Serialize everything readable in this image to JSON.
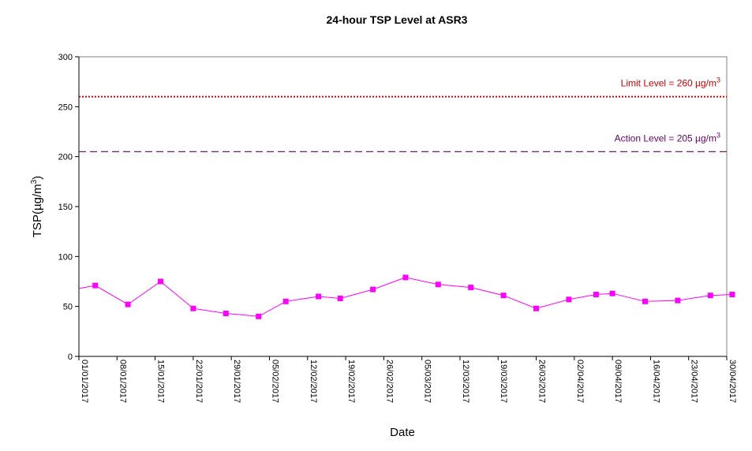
{
  "chart_data": {
    "type": "line",
    "title": "24-hour TSP Level at ASR3",
    "xlabel": "Date",
    "ylabel": "TSP(µg/m³)",
    "ylabel_base": "TSP(",
    "ylabel_unit": "µg/m",
    "ylabel_sup": "3",
    "ylabel_close": ")",
    "ylim": [
      0,
      300
    ],
    "yticks": [
      0,
      50,
      100,
      150,
      200,
      250,
      300
    ],
    "xlim": [
      "2017-01-01",
      "2017-04-30"
    ],
    "xticks": [
      "01/01/2017",
      "08/01/2017",
      "15/01/2017",
      "22/01/2017",
      "29/01/2017",
      "05/02/2017",
      "12/02/2017",
      "19/02/2017",
      "26/02/2017",
      "05/03/2017",
      "12/03/2017",
      "19/03/2017",
      "26/03/2017",
      "02/04/2017",
      "09/04/2017",
      "16/04/2017",
      "23/04/2017",
      "30/04/2017"
    ],
    "grid": false,
    "legend": "none",
    "reference_lines": [
      {
        "label": "Limit Level = 260 µg/m",
        "sup": "3",
        "value": 260,
        "color": "#cc0000",
        "style": "dotted"
      },
      {
        "label": "Action Level = 205 µg/m",
        "sup": "3",
        "value": 205,
        "color": "#660066",
        "style": "dashed"
      }
    ],
    "series": [
      {
        "color": "#ff00ff",
        "marker": "square",
        "start": {
          "x": "2017-01-01",
          "y": 68
        },
        "points": [
          {
            "x": "2017-01-04",
            "y": 71
          },
          {
            "x": "2017-01-10",
            "y": 52
          },
          {
            "x": "2017-01-16",
            "y": 75
          },
          {
            "x": "2017-01-22",
            "y": 48
          },
          {
            "x": "2017-01-28",
            "y": 43
          },
          {
            "x": "2017-02-03",
            "y": 40
          },
          {
            "x": "2017-02-08",
            "y": 55
          },
          {
            "x": "2017-02-14",
            "y": 60
          },
          {
            "x": "2017-02-18",
            "y": 58
          },
          {
            "x": "2017-02-24",
            "y": 67
          },
          {
            "x": "2017-03-02",
            "y": 79
          },
          {
            "x": "2017-03-08",
            "y": 72
          },
          {
            "x": "2017-03-14",
            "y": 69
          },
          {
            "x": "2017-03-20",
            "y": 61
          },
          {
            "x": "2017-03-26",
            "y": 48
          },
          {
            "x": "2017-04-01",
            "y": 57
          },
          {
            "x": "2017-04-06",
            "y": 62
          },
          {
            "x": "2017-04-09",
            "y": 63
          },
          {
            "x": "2017-04-15",
            "y": 55
          },
          {
            "x": "2017-04-21",
            "y": 56
          },
          {
            "x": "2017-04-27",
            "y": 61
          },
          {
            "x": "2017-05-01",
            "y": 62
          }
        ]
      }
    ]
  }
}
